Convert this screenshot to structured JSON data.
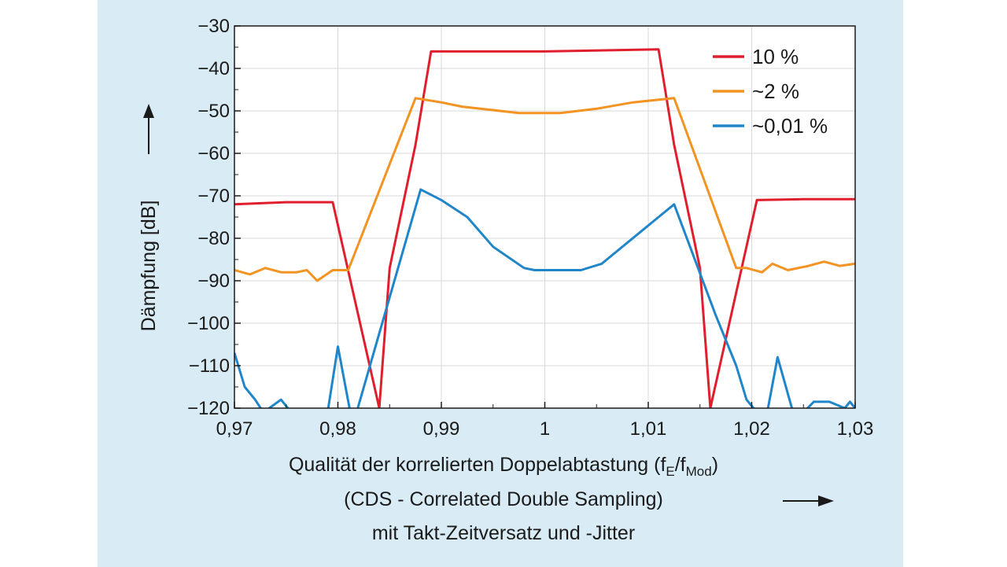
{
  "chart_data": {
    "type": "line",
    "xlabel_line1": "Qualität der korrelierten Doppelabtastung (f",
    "xlabel_sub1": "E",
    "xlabel_slash": "/f",
    "xlabel_sub2": "Mod",
    "xlabel_close": ")",
    "xlabel_line2": "(CDS - Correlated Double Sampling)",
    "xlabel_line3": "mit Takt-Zeitversatz und -Jitter",
    "ylabel": "Dämpfung [dB]",
    "xlim": [
      0.97,
      1.03
    ],
    "ylim": [
      -120,
      -30
    ],
    "x_ticks": [
      0.97,
      0.98,
      0.99,
      1.0,
      1.01,
      1.02,
      1.03
    ],
    "x_tick_labels": [
      "0,97",
      "0,98",
      "0,99",
      "1",
      "1,01",
      "1,02",
      "1,03"
    ],
    "y_ticks": [
      -30,
      -40,
      -50,
      -60,
      -70,
      -80,
      -90,
      -100,
      -110,
      -120
    ],
    "y_tick_labels": [
      "−30",
      "−40",
      "−50",
      "−60",
      "−70",
      "−80",
      "−90",
      "−100",
      "−110",
      "−120"
    ],
    "legend_position": "top-right",
    "series": [
      {
        "name": "10 %",
        "color": "#e01f2e",
        "points": [
          [
            0.97,
            -72
          ],
          [
            0.975,
            -71.5
          ],
          [
            0.9795,
            -71.5
          ],
          [
            0.984,
            -120
          ],
          [
            0.985,
            -87
          ],
          [
            0.9875,
            -58
          ],
          [
            0.989,
            -36
          ],
          [
            1.0,
            -36
          ],
          [
            1.011,
            -35.5
          ],
          [
            1.0125,
            -58
          ],
          [
            1.015,
            -87
          ],
          [
            1.016,
            -120
          ],
          [
            1.0205,
            -71
          ],
          [
            1.025,
            -70.8
          ],
          [
            1.03,
            -70.8
          ]
        ]
      },
      {
        "name": "~2 %",
        "color": "#f39322",
        "points": [
          [
            0.97,
            -87.5
          ],
          [
            0.9715,
            -88.5
          ],
          [
            0.973,
            -87
          ],
          [
            0.9745,
            -88
          ],
          [
            0.976,
            -88
          ],
          [
            0.977,
            -87.5
          ],
          [
            0.978,
            -90
          ],
          [
            0.9795,
            -87.5
          ],
          [
            0.981,
            -87.5
          ],
          [
            0.9875,
            -47
          ],
          [
            0.99,
            -48
          ],
          [
            0.992,
            -49
          ],
          [
            0.9975,
            -50.5
          ],
          [
            1.0015,
            -50.5
          ],
          [
            1.005,
            -49.5
          ],
          [
            1.0085,
            -48
          ],
          [
            1.0125,
            -47
          ],
          [
            1.0185,
            -87
          ],
          [
            1.0195,
            -87
          ],
          [
            1.021,
            -88
          ],
          [
            1.022,
            -86
          ],
          [
            1.0235,
            -87.5
          ],
          [
            1.0255,
            -86.5
          ],
          [
            1.027,
            -85.5
          ],
          [
            1.0285,
            -86.5
          ],
          [
            1.03,
            -86
          ]
        ]
      },
      {
        "name": "~0,01 %",
        "color": "#2086c9",
        "points": [
          [
            0.97,
            -107
          ],
          [
            0.971,
            -115
          ],
          [
            0.972,
            -118
          ],
          [
            0.9728,
            -121
          ],
          [
            0.9745,
            -118
          ],
          [
            0.9755,
            -121
          ],
          [
            0.979,
            -121
          ],
          [
            0.98,
            -105.5
          ],
          [
            0.9812,
            -121
          ],
          [
            0.9818,
            -121
          ],
          [
            0.988,
            -68.5
          ],
          [
            0.99,
            -71
          ],
          [
            0.9925,
            -75
          ],
          [
            0.995,
            -82
          ],
          [
            0.998,
            -87
          ],
          [
            0.999,
            -87.5
          ],
          [
            1.0035,
            -87.5
          ],
          [
            1.0055,
            -86
          ],
          [
            1.0095,
            -78
          ],
          [
            1.011,
            -75
          ],
          [
            1.0125,
            -72
          ],
          [
            1.0165,
            -98
          ],
          [
            1.0185,
            -110
          ],
          [
            1.0195,
            -118
          ],
          [
            1.0205,
            -121
          ],
          [
            1.0215,
            -121
          ],
          [
            1.0225,
            -108
          ],
          [
            1.024,
            -121
          ],
          [
            1.025,
            -121
          ],
          [
            1.026,
            -118.5
          ],
          [
            1.0275,
            -118.5
          ],
          [
            1.029,
            -120
          ],
          [
            1.0295,
            -118.5
          ],
          [
            1.03,
            -120
          ]
        ]
      }
    ]
  }
}
